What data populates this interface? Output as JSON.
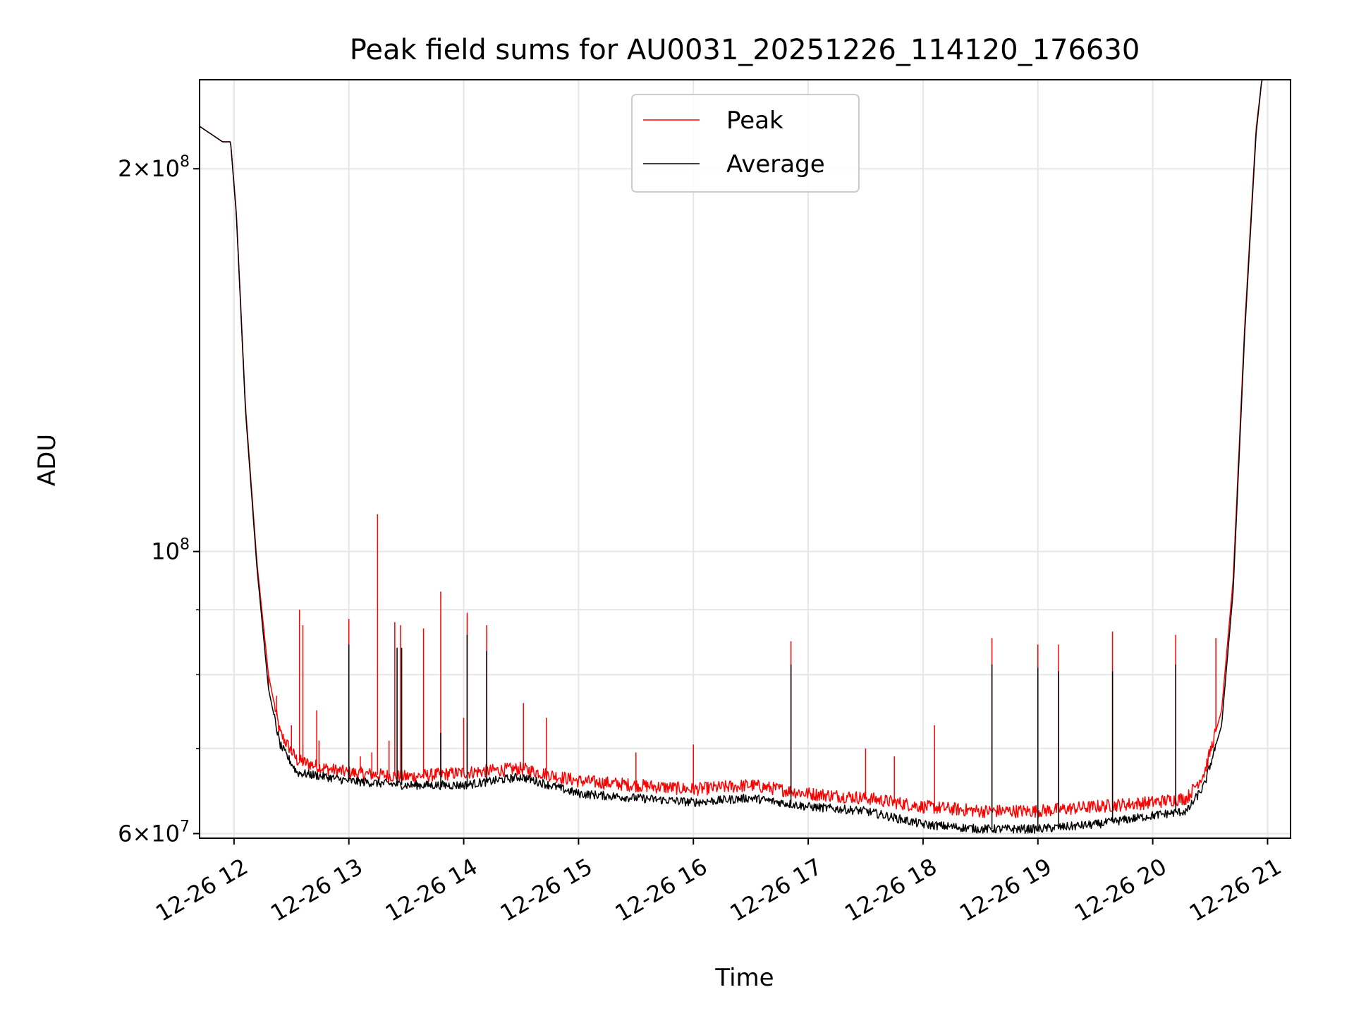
{
  "chart_data": {
    "type": "line",
    "title": "Peak field sums for AU0031_20251226_114120_176630",
    "xlabel": "Time",
    "ylabel": "ADU",
    "yscale": "log",
    "ylim": [
      59500000,
      235000000
    ],
    "xlim": [
      11.7,
      21.2
    ],
    "grid": true,
    "legend_position": "top-center",
    "x_ticks": [
      {
        "value": 12,
        "label": "12-26 12"
      },
      {
        "value": 13,
        "label": "12-26 13"
      },
      {
        "value": 14,
        "label": "12-26 14"
      },
      {
        "value": 15,
        "label": "12-26 15"
      },
      {
        "value": 16,
        "label": "12-26 16"
      },
      {
        "value": 17,
        "label": "12-26 17"
      },
      {
        "value": 18,
        "label": "12-26 18"
      },
      {
        "value": 19,
        "label": "12-26 19"
      },
      {
        "value": 20,
        "label": "12-26 20"
      },
      {
        "value": 21,
        "label": "12-26 21"
      }
    ],
    "y_ticks_major": [
      {
        "value": 60000000,
        "base": "6×10",
        "exp": "7"
      },
      {
        "value": 100000000,
        "base": "10",
        "exp": "8"
      },
      {
        "value": 200000000,
        "base": "2×10",
        "exp": "8"
      }
    ],
    "y_ticks_minor": [
      70000000,
      80000000,
      90000000
    ],
    "series": [
      {
        "name": "Peak",
        "color": "#ff0000",
        "baseline": [
          [
            11.7,
            216000000
          ],
          [
            11.9,
            210000000
          ],
          [
            11.97,
            210000000
          ],
          [
            12.02,
            185000000
          ],
          [
            12.1,
            130000000
          ],
          [
            12.2,
            98000000
          ],
          [
            12.3,
            80000000
          ],
          [
            12.4,
            72000000
          ],
          [
            12.55,
            68500000
          ],
          [
            12.8,
            67500000
          ],
          [
            13.0,
            67000000
          ],
          [
            13.5,
            66500000
          ],
          [
            14.0,
            67000000
          ],
          [
            14.5,
            67500000
          ],
          [
            15.0,
            66000000
          ],
          [
            15.5,
            65500000
          ],
          [
            16.0,
            65000000
          ],
          [
            16.5,
            65500000
          ],
          [
            17.0,
            64500000
          ],
          [
            17.5,
            64000000
          ],
          [
            18.0,
            63000000
          ],
          [
            18.5,
            62500000
          ],
          [
            19.0,
            62500000
          ],
          [
            19.5,
            63000000
          ],
          [
            20.0,
            63500000
          ],
          [
            20.3,
            64000000
          ],
          [
            20.45,
            67000000
          ],
          [
            20.6,
            75000000
          ],
          [
            20.7,
            95000000
          ],
          [
            20.8,
            150000000
          ],
          [
            20.9,
            215000000
          ],
          [
            20.95,
            235000000
          ],
          [
            21.2,
            235000000
          ]
        ],
        "spikes": [
          [
            12.3,
            78000000
          ],
          [
            12.37,
            77000000
          ],
          [
            12.5,
            73000000
          ],
          [
            12.57,
            90000000
          ],
          [
            12.6,
            87500000
          ],
          [
            12.72,
            75000000
          ],
          [
            12.74,
            71000000
          ],
          [
            13.0,
            88500000
          ],
          [
            13.1,
            69000000
          ],
          [
            13.2,
            69500000
          ],
          [
            13.25,
            107000000
          ],
          [
            13.35,
            71000000
          ],
          [
            13.4,
            88000000
          ],
          [
            13.45,
            87500000
          ],
          [
            13.65,
            87000000
          ],
          [
            13.8,
            93000000
          ],
          [
            14.0,
            74000000
          ],
          [
            14.03,
            89500000
          ],
          [
            14.2,
            87500000
          ],
          [
            14.52,
            76000000
          ],
          [
            14.72,
            74000000
          ],
          [
            15.5,
            69500000
          ],
          [
            16.0,
            70500000
          ],
          [
            16.85,
            85000000
          ],
          [
            17.5,
            70000000
          ],
          [
            17.75,
            69000000
          ],
          [
            18.1,
            73000000
          ],
          [
            18.6,
            85500000
          ],
          [
            19.0,
            84500000
          ],
          [
            19.18,
            84500000
          ],
          [
            19.65,
            86500000
          ],
          [
            20.2,
            86000000
          ],
          [
            20.55,
            85500000
          ]
        ]
      },
      {
        "name": "Average",
        "color": "#000000",
        "baseline": [
          [
            11.7,
            216000000
          ],
          [
            11.9,
            210000000
          ],
          [
            11.97,
            210000000
          ],
          [
            12.02,
            184000000
          ],
          [
            12.1,
            129000000
          ],
          [
            12.2,
            97000000
          ],
          [
            12.3,
            78000000
          ],
          [
            12.4,
            70500000
          ],
          [
            12.55,
            67000000
          ],
          [
            12.8,
            66500000
          ],
          [
            13.0,
            66000000
          ],
          [
            13.5,
            65500000
          ],
          [
            14.0,
            65500000
          ],
          [
            14.5,
            66500000
          ],
          [
            15.0,
            64500000
          ],
          [
            15.5,
            64000000
          ],
          [
            16.0,
            63500000
          ],
          [
            16.5,
            64000000
          ],
          [
            17.0,
            63000000
          ],
          [
            17.5,
            62500000
          ],
          [
            18.0,
            61000000
          ],
          [
            18.5,
            60500000
          ],
          [
            19.0,
            60500000
          ],
          [
            19.5,
            61000000
          ],
          [
            20.0,
            62000000
          ],
          [
            20.3,
            62500000
          ],
          [
            20.45,
            65500000
          ],
          [
            20.6,
            73000000
          ],
          [
            20.7,
            93000000
          ],
          [
            20.8,
            148000000
          ],
          [
            20.9,
            213000000
          ],
          [
            20.95,
            235000000
          ],
          [
            21.2,
            235000000
          ]
        ],
        "spikes": [
          [
            13.0,
            84500000
          ],
          [
            13.42,
            84000000
          ],
          [
            13.46,
            84000000
          ],
          [
            13.8,
            72000000
          ],
          [
            14.03,
            86000000
          ],
          [
            14.2,
            83500000
          ],
          [
            16.85,
            81500000
          ],
          [
            18.6,
            81500000
          ],
          [
            19.0,
            81000000
          ],
          [
            19.18,
            80500000
          ],
          [
            19.65,
            80500000
          ],
          [
            20.2,
            81500000
          ]
        ]
      }
    ]
  }
}
